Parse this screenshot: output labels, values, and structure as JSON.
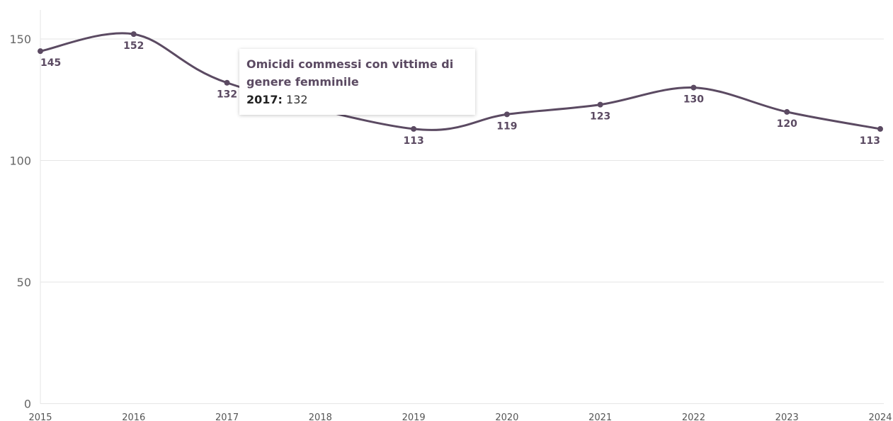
{
  "chart_data": {
    "type": "line",
    "x": [
      "2015",
      "2016",
      "2017",
      "2018",
      "2019",
      "2020",
      "2021",
      "2022",
      "2023",
      "2024"
    ],
    "series": [
      {
        "name": "Omicidi commessi con vittime di genere femminile",
        "values": [
          145,
          152,
          132,
          null,
          113,
          119,
          123,
          130,
          120,
          113
        ]
      }
    ],
    "data_labels": [
      "145",
      "152",
      "132",
      "",
      "113",
      "119",
      "123",
      "130",
      "120",
      "113"
    ],
    "yticks": [
      0,
      50,
      100,
      150
    ],
    "ylim": [
      0,
      160
    ],
    "grid": true,
    "line_color": "#5b4a62",
    "grid_color": "#e6e6e6"
  },
  "tooltip": {
    "title": "Omicidi commessi con vittime di genere femminile",
    "year": "2017:",
    "value": "132"
  }
}
